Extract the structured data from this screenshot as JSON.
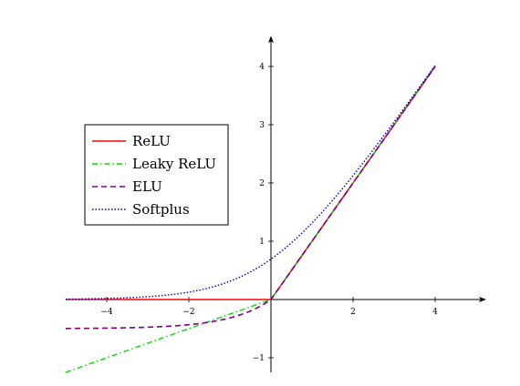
{
  "chart_data": {
    "type": "line",
    "title": "",
    "xlabel": "",
    "ylabel": "",
    "xlim": [
      -5,
      5
    ],
    "ylim": [
      -1.25,
      4.45
    ],
    "grid": false,
    "legend_position": "left",
    "xticks": [
      -4,
      -2,
      2,
      4
    ],
    "xtick_labels": [
      "−4",
      "−2",
      "2",
      "4"
    ],
    "yticks": [
      -1,
      1,
      2,
      3,
      4
    ],
    "ytick_labels": [
      "−1",
      "1",
      "2",
      "3",
      "4"
    ],
    "series": [
      {
        "name": "ReLU",
        "function": "relu",
        "domain": [
          -5,
          4
        ],
        "color": "#ff0000",
        "style": "solid"
      },
      {
        "name": "Leaky ReLU",
        "function": "leaky_relu",
        "slope": 0.25,
        "domain": [
          -5,
          4
        ],
        "color": "#00dd00",
        "style": "dashdot"
      },
      {
        "name": "ELU",
        "function": "elu",
        "alpha": 0.5,
        "domain": [
          -5,
          4
        ],
        "color": "#800080",
        "style": "dashed"
      },
      {
        "name": "Softplus",
        "function": "softplus",
        "domain": [
          -5,
          4
        ],
        "color": "#0000cc",
        "style": "dotted"
      }
    ]
  }
}
